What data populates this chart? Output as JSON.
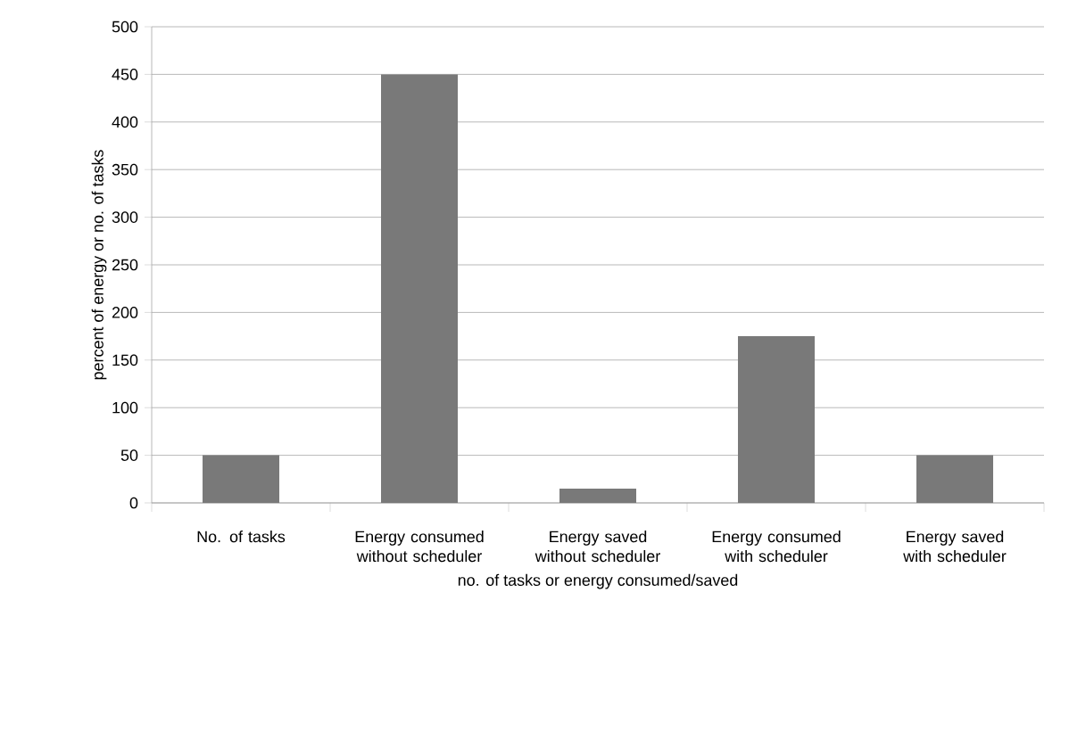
{
  "chart_data": {
    "type": "bar",
    "xlabel": "no. of tasks or energy consumed/saved",
    "ylabel": "percent of energy or no. of tasks",
    "categories": [
      "No. of tasks",
      "Energy consumed without scheduler",
      "Energy saved without scheduler",
      "Energy consumed with scheduler",
      "Energy saved with scheduler"
    ],
    "values": [
      50,
      450,
      15,
      175,
      50
    ],
    "color": "#797979",
    "ylim": [
      0,
      500
    ],
    "yticks": [
      0,
      50,
      100,
      150,
      200,
      250,
      300,
      350,
      400,
      450,
      500
    ],
    "grid": "y"
  }
}
